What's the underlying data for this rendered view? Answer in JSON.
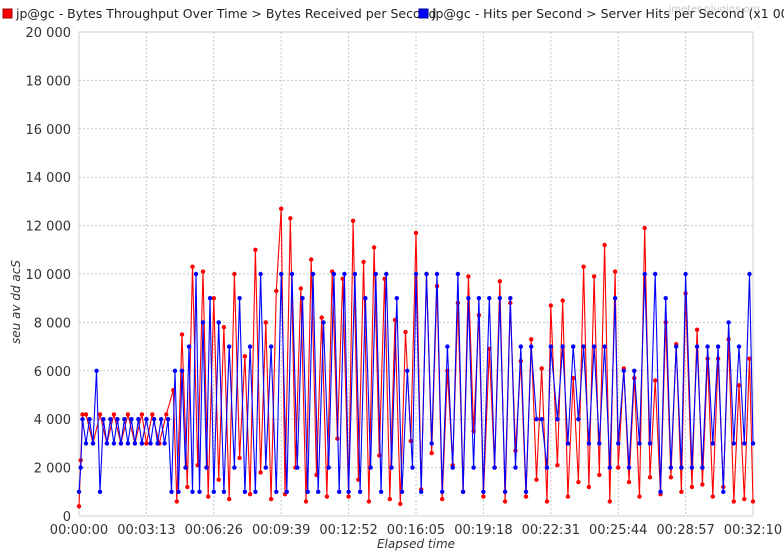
{
  "chart_data": {
    "type": "line",
    "xlabel": "Elapsed time",
    "ylabel": "seu av dd acS",
    "watermark": "jmeter-plugins.org",
    "x_ticks": [
      "00:00:00",
      "00:03:13",
      "00:06:26",
      "00:09:39",
      "00:12:52",
      "00:16:05",
      "00:19:18",
      "00:22:31",
      "00:25:44",
      "00:28:57",
      "00:32:10"
    ],
    "y_ticks": [
      "0",
      "2 000",
      "4 000",
      "6 000",
      "8 000",
      "10 000",
      "12 000",
      "14 000",
      "16 000",
      "18 000",
      "20 000"
    ],
    "xlim": [
      "00:00:00",
      "00:32:10"
    ],
    "ylim": [
      0,
      20000
    ],
    "grid": true,
    "legend_position": "top",
    "series": [
      {
        "name": "jp@gc - Bytes Throughput Over Time > Bytes Received per Second",
        "color": "#ff0000",
        "points": [
          [
            "00:00:00",
            400
          ],
          [
            "00:00:05",
            2300
          ],
          [
            "00:00:10",
            4200
          ],
          [
            "00:00:20",
            4200
          ],
          [
            "00:00:40",
            3000
          ],
          [
            "00:01:00",
            4200
          ],
          [
            "00:01:20",
            3000
          ],
          [
            "00:01:40",
            4200
          ],
          [
            "00:02:00",
            3000
          ],
          [
            "00:02:20",
            4200
          ],
          [
            "00:02:40",
            3000
          ],
          [
            "00:03:00",
            4200
          ],
          [
            "00:03:13",
            3000
          ],
          [
            "00:03:30",
            4200
          ],
          [
            "00:03:50",
            3000
          ],
          [
            "00:04:10",
            4200
          ],
          [
            "00:04:30",
            5200
          ],
          [
            "00:04:40",
            600
          ],
          [
            "00:04:55",
            7500
          ],
          [
            "00:05:10",
            1200
          ],
          [
            "00:05:25",
            10300
          ],
          [
            "00:05:40",
            2100
          ],
          [
            "00:05:55",
            10100
          ],
          [
            "00:06:10",
            800
          ],
          [
            "00:06:26",
            9000
          ],
          [
            "00:06:40",
            1500
          ],
          [
            "00:06:55",
            7800
          ],
          [
            "00:07:10",
            700
          ],
          [
            "00:07:25",
            10000
          ],
          [
            "00:07:40",
            2400
          ],
          [
            "00:07:55",
            6600
          ],
          [
            "00:08:10",
            900
          ],
          [
            "00:08:25",
            11000
          ],
          [
            "00:08:40",
            1800
          ],
          [
            "00:08:55",
            8000
          ],
          [
            "00:09:10",
            700
          ],
          [
            "00:09:25",
            9300
          ],
          [
            "00:09:39",
            12700
          ],
          [
            "00:09:50",
            900
          ],
          [
            "00:10:05",
            12300
          ],
          [
            "00:10:20",
            2000
          ],
          [
            "00:10:35",
            9400
          ],
          [
            "00:10:50",
            600
          ],
          [
            "00:11:05",
            10600
          ],
          [
            "00:11:20",
            1700
          ],
          [
            "00:11:35",
            8200
          ],
          [
            "00:11:50",
            800
          ],
          [
            "00:12:05",
            10100
          ],
          [
            "00:12:20",
            3200
          ],
          [
            "00:12:35",
            9800
          ],
          [
            "00:12:52",
            800
          ],
          [
            "00:13:05",
            12200
          ],
          [
            "00:13:20",
            1500
          ],
          [
            "00:13:35",
            10500
          ],
          [
            "00:13:50",
            600
          ],
          [
            "00:14:05",
            11100
          ],
          [
            "00:14:20",
            2500
          ],
          [
            "00:14:35",
            9800
          ],
          [
            "00:14:50",
            700
          ],
          [
            "00:15:05",
            8100
          ],
          [
            "00:15:20",
            500
          ],
          [
            "00:15:35",
            7600
          ],
          [
            "00:15:50",
            3100
          ],
          [
            "00:16:05",
            11700
          ],
          [
            "00:16:20",
            1100
          ],
          [
            "00:16:35",
            10000
          ],
          [
            "00:16:50",
            2600
          ],
          [
            "00:17:05",
            9500
          ],
          [
            "00:17:20",
            700
          ],
          [
            "00:17:35",
            6000
          ],
          [
            "00:17:50",
            2100
          ],
          [
            "00:18:05",
            8800
          ],
          [
            "00:18:20",
            1000
          ],
          [
            "00:18:35",
            9900
          ],
          [
            "00:18:50",
            3500
          ],
          [
            "00:19:05",
            8300
          ],
          [
            "00:19:18",
            800
          ],
          [
            "00:19:35",
            6900
          ],
          [
            "00:19:50",
            2000
          ],
          [
            "00:20:05",
            9700
          ],
          [
            "00:20:20",
            600
          ],
          [
            "00:20:35",
            8800
          ],
          [
            "00:20:50",
            2700
          ],
          [
            "00:21:05",
            6400
          ],
          [
            "00:21:20",
            800
          ],
          [
            "00:21:35",
            7300
          ],
          [
            "00:21:50",
            1500
          ],
          [
            "00:22:05",
            6100
          ],
          [
            "00:22:20",
            600
          ],
          [
            "00:22:31",
            8700
          ],
          [
            "00:22:50",
            2100
          ],
          [
            "00:23:05",
            8900
          ],
          [
            "00:23:20",
            800
          ],
          [
            "00:23:35",
            5700
          ],
          [
            "00:23:50",
            1400
          ],
          [
            "00:24:05",
            10300
          ],
          [
            "00:24:20",
            1200
          ],
          [
            "00:24:35",
            9900
          ],
          [
            "00:24:50",
            1700
          ],
          [
            "00:25:05",
            11200
          ],
          [
            "00:25:20",
            600
          ],
          [
            "00:25:35",
            10100
          ],
          [
            "00:25:44",
            2000
          ],
          [
            "00:26:00",
            6100
          ],
          [
            "00:26:15",
            1400
          ],
          [
            "00:26:30",
            5700
          ],
          [
            "00:26:45",
            800
          ],
          [
            "00:27:00",
            11900
          ],
          [
            "00:27:15",
            1600
          ],
          [
            "00:27:30",
            5600
          ],
          [
            "00:27:45",
            900
          ],
          [
            "00:28:00",
            8000
          ],
          [
            "00:28:15",
            1600
          ],
          [
            "00:28:30",
            7100
          ],
          [
            "00:28:45",
            1000
          ],
          [
            "00:28:57",
            9200
          ],
          [
            "00:29:15",
            1200
          ],
          [
            "00:29:30",
            7700
          ],
          [
            "00:29:45",
            1300
          ],
          [
            "00:30:00",
            6500
          ],
          [
            "00:30:15",
            800
          ],
          [
            "00:30:30",
            6500
          ],
          [
            "00:30:45",
            1200
          ],
          [
            "00:31:00",
            7300
          ],
          [
            "00:31:15",
            600
          ],
          [
            "00:31:30",
            5400
          ],
          [
            "00:31:45",
            700
          ],
          [
            "00:32:00",
            6500
          ],
          [
            "00:32:10",
            600
          ]
        ]
      },
      {
        "name": "jp@gc - Hits per Second > Server Hits per Second (x1 000)",
        "color": "#0000ff",
        "points": [
          [
            "00:00:00",
            1000
          ],
          [
            "00:00:05",
            2000
          ],
          [
            "00:00:10",
            4000
          ],
          [
            "00:00:20",
            3000
          ],
          [
            "00:00:30",
            4000
          ],
          [
            "00:00:40",
            3000
          ],
          [
            "00:00:50",
            6000
          ],
          [
            "00:01:00",
            1000
          ],
          [
            "00:01:10",
            4000
          ],
          [
            "00:01:20",
            3000
          ],
          [
            "00:01:30",
            4000
          ],
          [
            "00:01:40",
            3000
          ],
          [
            "00:01:50",
            4000
          ],
          [
            "00:02:00",
            3000
          ],
          [
            "00:02:10",
            4000
          ],
          [
            "00:02:20",
            3000
          ],
          [
            "00:02:30",
            4000
          ],
          [
            "00:02:40",
            3000
          ],
          [
            "00:02:50",
            4000
          ],
          [
            "00:03:00",
            3000
          ],
          [
            "00:03:13",
            4000
          ],
          [
            "00:03:25",
            3000
          ],
          [
            "00:03:35",
            4000
          ],
          [
            "00:03:45",
            3000
          ],
          [
            "00:03:55",
            4000
          ],
          [
            "00:04:05",
            3000
          ],
          [
            "00:04:15",
            4000
          ],
          [
            "00:04:25",
            1000
          ],
          [
            "00:04:35",
            6000
          ],
          [
            "00:04:45",
            1000
          ],
          [
            "00:04:55",
            6000
          ],
          [
            "00:05:05",
            2000
          ],
          [
            "00:05:15",
            7000
          ],
          [
            "00:05:25",
            1000
          ],
          [
            "00:05:35",
            10000
          ],
          [
            "00:05:45",
            1000
          ],
          [
            "00:05:55",
            8000
          ],
          [
            "00:06:05",
            2000
          ],
          [
            "00:06:15",
            9000
          ],
          [
            "00:06:26",
            1000
          ],
          [
            "00:06:40",
            8000
          ],
          [
            "00:06:55",
            1000
          ],
          [
            "00:07:10",
            7000
          ],
          [
            "00:07:25",
            2000
          ],
          [
            "00:07:40",
            9000
          ],
          [
            "00:07:55",
            1000
          ],
          [
            "00:08:10",
            7000
          ],
          [
            "00:08:25",
            1000
          ],
          [
            "00:08:40",
            10000
          ],
          [
            "00:08:55",
            2000
          ],
          [
            "00:09:10",
            7000
          ],
          [
            "00:09:25",
            1000
          ],
          [
            "00:09:39",
            10000
          ],
          [
            "00:09:55",
            1000
          ],
          [
            "00:10:10",
            10000
          ],
          [
            "00:10:25",
            2000
          ],
          [
            "00:10:40",
            9000
          ],
          [
            "00:10:55",
            1000
          ],
          [
            "00:11:10",
            10000
          ],
          [
            "00:11:25",
            1000
          ],
          [
            "00:11:40",
            8000
          ],
          [
            "00:11:55",
            2000
          ],
          [
            "00:12:10",
            10000
          ],
          [
            "00:12:25",
            1000
          ],
          [
            "00:12:40",
            10000
          ],
          [
            "00:12:52",
            1000
          ],
          [
            "00:13:10",
            10000
          ],
          [
            "00:13:25",
            1000
          ],
          [
            "00:13:40",
            9000
          ],
          [
            "00:13:55",
            2000
          ],
          [
            "00:14:10",
            10000
          ],
          [
            "00:14:25",
            1000
          ],
          [
            "00:14:40",
            10000
          ],
          [
            "00:14:55",
            2000
          ],
          [
            "00:15:10",
            9000
          ],
          [
            "00:15:25",
            1000
          ],
          [
            "00:15:40",
            6000
          ],
          [
            "00:15:55",
            2000
          ],
          [
            "00:16:05",
            10000
          ],
          [
            "00:16:20",
            1000
          ],
          [
            "00:16:35",
            10000
          ],
          [
            "00:16:50",
            3000
          ],
          [
            "00:17:05",
            10000
          ],
          [
            "00:17:20",
            1000
          ],
          [
            "00:17:35",
            7000
          ],
          [
            "00:17:50",
            2000
          ],
          [
            "00:18:05",
            10000
          ],
          [
            "00:18:20",
            1000
          ],
          [
            "00:18:35",
            9000
          ],
          [
            "00:18:50",
            2000
          ],
          [
            "00:19:05",
            9000
          ],
          [
            "00:19:18",
            1000
          ],
          [
            "00:19:35",
            9000
          ],
          [
            "00:19:50",
            2000
          ],
          [
            "00:20:05",
            9000
          ],
          [
            "00:20:20",
            1000
          ],
          [
            "00:20:35",
            9000
          ],
          [
            "00:20:50",
            2000
          ],
          [
            "00:21:05",
            7000
          ],
          [
            "00:21:20",
            1000
          ],
          [
            "00:21:35",
            7000
          ],
          [
            "00:21:50",
            4000
          ],
          [
            "00:22:05",
            4000
          ],
          [
            "00:22:20",
            2000
          ],
          [
            "00:22:31",
            7000
          ],
          [
            "00:22:50",
            4000
          ],
          [
            "00:23:05",
            7000
          ],
          [
            "00:23:20",
            3000
          ],
          [
            "00:23:35",
            7000
          ],
          [
            "00:23:50",
            4000
          ],
          [
            "00:24:05",
            7000
          ],
          [
            "00:24:20",
            3000
          ],
          [
            "00:24:35",
            7000
          ],
          [
            "00:24:50",
            3000
          ],
          [
            "00:25:05",
            7000
          ],
          [
            "00:25:20",
            2000
          ],
          [
            "00:25:35",
            9000
          ],
          [
            "00:25:44",
            3000
          ],
          [
            "00:26:00",
            6000
          ],
          [
            "00:26:15",
            2000
          ],
          [
            "00:26:30",
            6000
          ],
          [
            "00:26:45",
            3000
          ],
          [
            "00:27:00",
            10000
          ],
          [
            "00:27:15",
            3000
          ],
          [
            "00:27:30",
            10000
          ],
          [
            "00:27:45",
            1000
          ],
          [
            "00:28:00",
            9000
          ],
          [
            "00:28:15",
            2000
          ],
          [
            "00:28:30",
            7000
          ],
          [
            "00:28:45",
            2000
          ],
          [
            "00:28:57",
            10000
          ],
          [
            "00:29:15",
            2000
          ],
          [
            "00:29:30",
            7000
          ],
          [
            "00:29:45",
            2000
          ],
          [
            "00:30:00",
            7000
          ],
          [
            "00:30:15",
            3000
          ],
          [
            "00:30:30",
            7000
          ],
          [
            "00:30:45",
            1000
          ],
          [
            "00:31:00",
            8000
          ],
          [
            "00:31:15",
            3000
          ],
          [
            "00:31:30",
            7000
          ],
          [
            "00:31:45",
            3000
          ],
          [
            "00:32:00",
            10000
          ],
          [
            "00:32:10",
            3000
          ]
        ]
      }
    ]
  }
}
